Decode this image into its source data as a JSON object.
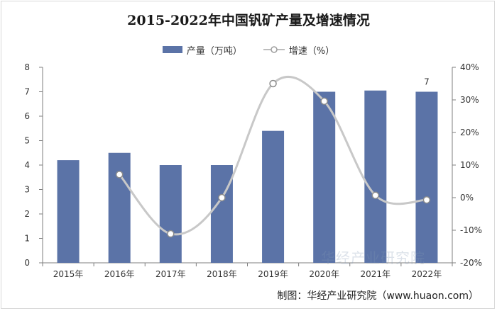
{
  "chart_data": {
    "type": "bar",
    "title": "2015-2022年中国钒矿产量及增速情况",
    "categories": [
      "2015年",
      "2016年",
      "2017年",
      "2018年",
      "2019年",
      "2020年",
      "2021年",
      "2022年"
    ],
    "series": [
      {
        "name": "产量（万吨）",
        "type": "bar",
        "axis": "left",
        "values": [
          4.2,
          4.5,
          4.0,
          4.0,
          5.4,
          7.0,
          7.05,
          7.0
        ]
      },
      {
        "name": "增速（%）",
        "type": "line",
        "axis": "right",
        "values": [
          null,
          7.1,
          -11.1,
          0.0,
          35.0,
          29.6,
          0.7,
          -0.7
        ]
      }
    ],
    "ylim_left": [
      0,
      8
    ],
    "yticks_left": [
      "0",
      "1",
      "2",
      "3",
      "4",
      "5",
      "6",
      "7",
      "8"
    ],
    "ylim_right": [
      -20,
      40
    ],
    "yticks_right": [
      "-20%",
      "-10%",
      "0%",
      "10%",
      "20%",
      "30%",
      "40%"
    ],
    "data_labels": [
      {
        "category_index": 7,
        "text": "7"
      }
    ],
    "colors": {
      "bar": "#5b73a7",
      "line": "#c8c8c8",
      "marker_fill": "#ffffff",
      "marker_stroke": "#bfbfbf"
    },
    "grid": false,
    "legend_position": "top"
  },
  "credit": "制图：华经产业研究院（www.huaon.com）",
  "watermark": "华经产业研究院"
}
